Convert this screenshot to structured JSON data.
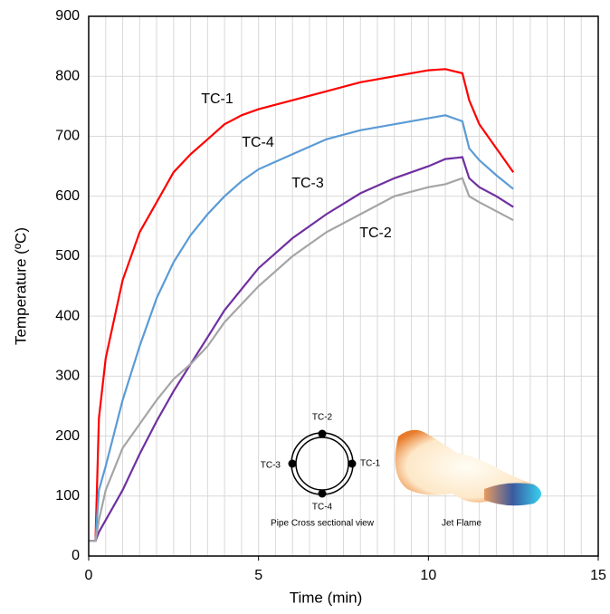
{
  "chart_data": {
    "type": "line",
    "x_label": "Time (min)",
    "y_label": "Temperature (ºC)",
    "x": [
      0,
      0.2,
      0.3,
      0.5,
      1,
      1.5,
      2,
      2.5,
      3,
      3.5,
      4,
      4.5,
      5,
      6,
      7,
      8,
      9,
      10,
      10.5,
      11,
      11.2,
      11.5,
      12,
      12.5
    ],
    "series": [
      {
        "name": "TC-1",
        "color": "#ff0000",
        "values": [
          25,
          25,
          230,
          330,
          460,
          540,
          590,
          640,
          670,
          695,
          720,
          735,
          745,
          760,
          775,
          790,
          800,
          810,
          812,
          805,
          760,
          720,
          680,
          640
        ]
      },
      {
        "name": "TC-4",
        "color": "#5b9bd5",
        "values": [
          25,
          25,
          110,
          150,
          260,
          350,
          430,
          490,
          535,
          570,
          600,
          625,
          645,
          670,
          695,
          710,
          720,
          730,
          735,
          725,
          680,
          660,
          635,
          612
        ]
      },
      {
        "name": "TC-3",
        "color": "#7030a0",
        "values": [
          25,
          25,
          40,
          60,
          110,
          170,
          225,
          275,
          320,
          365,
          410,
          445,
          480,
          530,
          570,
          605,
          630,
          650,
          662,
          665,
          630,
          615,
          600,
          582
        ]
      },
      {
        "name": "TC-2",
        "color": "#a5a5a5",
        "values": [
          25,
          25,
          60,
          110,
          180,
          220,
          260,
          295,
          320,
          350,
          390,
          420,
          450,
          500,
          540,
          570,
          600,
          615,
          620,
          630,
          600,
          590,
          575,
          560
        ]
      }
    ],
    "xlim": [
      0,
      15
    ],
    "xticks": [
      0,
      5,
      10,
      15
    ],
    "x_minor_step": 0.5,
    "ylim": [
      0,
      900
    ],
    "yticks": [
      0,
      100,
      200,
      300,
      400,
      500,
      600,
      700,
      800,
      900
    ],
    "grid": true
  },
  "inset": {
    "sensors": [
      "TC-2",
      "TC-3",
      "TC-1",
      "TC-4"
    ],
    "caption": "Pipe Cross  sectional view",
    "flame_caption": "Jet Flame"
  }
}
